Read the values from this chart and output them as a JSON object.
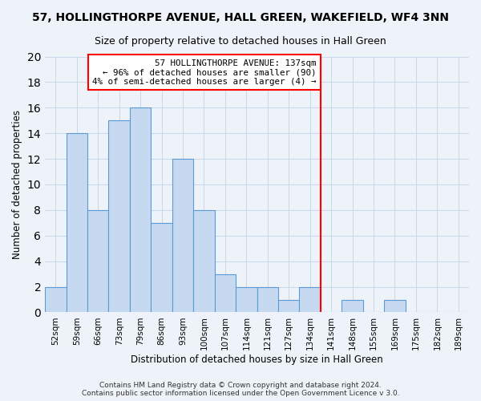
{
  "title": "57, HOLLINGTHORPE AVENUE, HALL GREEN, WAKEFIELD, WF4 3NN",
  "subtitle": "Size of property relative to detached houses in Hall Green",
  "xlabel": "Distribution of detached houses by size in Hall Green",
  "ylabel": "Number of detached properties",
  "bin_labels": [
    "52sqm",
    "59sqm",
    "66sqm",
    "73sqm",
    "79sqm",
    "86sqm",
    "93sqm",
    "100sqm",
    "107sqm",
    "114sqm",
    "121sqm",
    "127sqm",
    "134sqm",
    "141sqm",
    "148sqm",
    "155sqm",
    "169sqm",
    "175sqm",
    "182sqm",
    "189sqm"
  ],
  "bar_heights": [
    2,
    14,
    8,
    15,
    16,
    7,
    12,
    8,
    3,
    2,
    2,
    1,
    2,
    0,
    1,
    0,
    1,
    0,
    0,
    0
  ],
  "bar_color": "#c6d9f0",
  "bar_edge_color": "#5b9bd5",
  "red_line_index": 12.5,
  "annotation_line1": "57 HOLLINGTHORPE AVENUE: 137sqm",
  "annotation_line2": "← 96% of detached houses are smaller (90)",
  "annotation_line3": "4% of semi-detached houses are larger (4) →",
  "ylim": [
    0,
    20
  ],
  "yticks": [
    0,
    2,
    4,
    6,
    8,
    10,
    12,
    14,
    16,
    18,
    20
  ],
  "footer": "Contains HM Land Registry data © Crown copyright and database right 2024.\nContains public sector information licensed under the Open Government Licence v 3.0.",
  "bg_color": "#eef3f9",
  "grid_color": "#c8d8e8"
}
